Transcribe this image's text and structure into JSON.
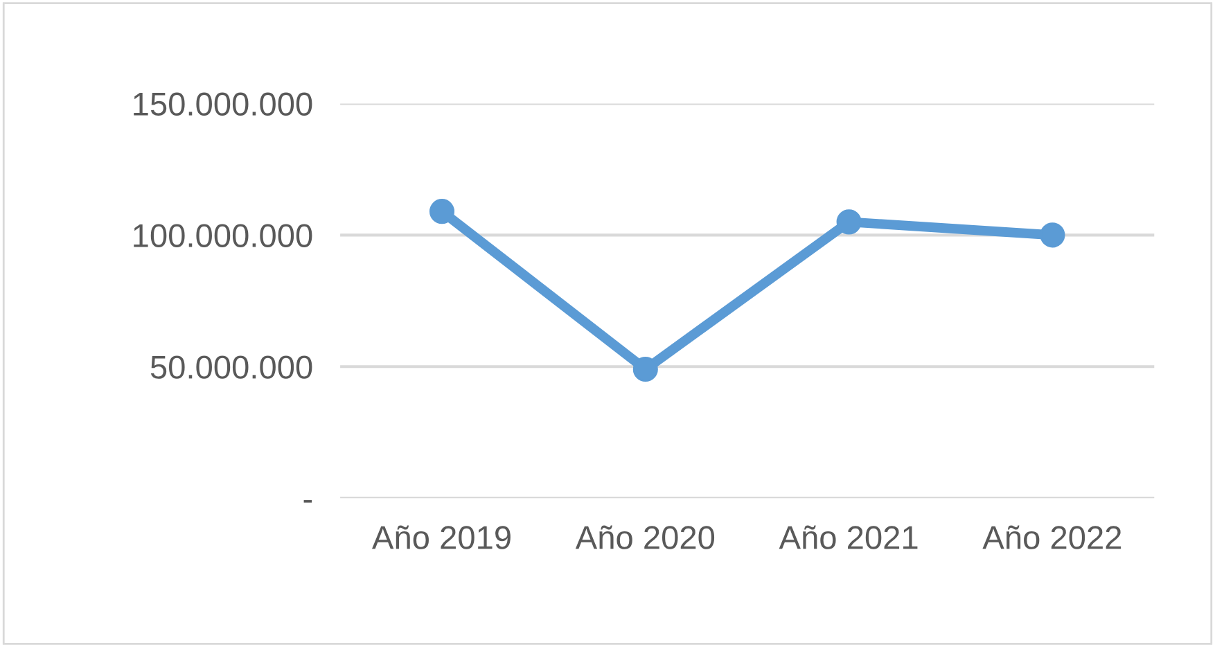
{
  "chart_data": {
    "type": "line",
    "categories": [
      "Año 2019",
      "Año 2020",
      "Año 2021",
      "Año 2022"
    ],
    "series": [
      {
        "color": "#5b9bd5",
        "values": [
          109000000,
          49000000,
          105000000,
          100000000
        ]
      }
    ],
    "ylim": [
      0,
      150000000
    ],
    "yticks": [
      {
        "value": 0,
        "label": "-"
      },
      {
        "value": 50000000,
        "label": "50.000.000"
      },
      {
        "value": 100000000,
        "label": "100.000.000"
      },
      {
        "value": 150000000,
        "label": "150.000.000"
      }
    ],
    "grid": "y",
    "marker": "circle",
    "line_style": "solid",
    "legend": false
  }
}
